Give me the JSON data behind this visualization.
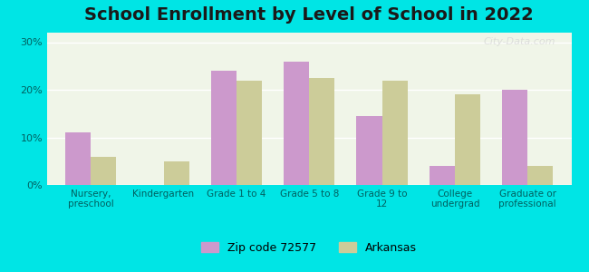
{
  "title": "School Enrollment by Level of School in 2022",
  "categories": [
    "Nursery,\npreschool",
    "Kindergarten",
    "Grade 1 to 4",
    "Grade 5 to 8",
    "Grade 9 to\n12",
    "College\nundergrad",
    "Graduate or\nprofessional"
  ],
  "zip_values": [
    11.0,
    0.0,
    24.0,
    26.0,
    14.5,
    4.0,
    20.0
  ],
  "arkansas_values": [
    6.0,
    5.0,
    22.0,
    22.5,
    22.0,
    19.0,
    4.0
  ],
  "zip_color": "#cc99cc",
  "arkansas_color": "#cccc99",
  "background_outer": "#00e5e5",
  "background_inner": "#f0f5e8",
  "title_fontsize": 14,
  "ylabel_ticks": [
    "0%",
    "10%",
    "20%",
    "30%"
  ],
  "ytick_vals": [
    0,
    10,
    20,
    30
  ],
  "ylim": [
    0,
    32
  ],
  "legend_zip_label": "Zip code 72577",
  "legend_ark_label": "Arkansas",
  "watermark": "City-Data.com"
}
